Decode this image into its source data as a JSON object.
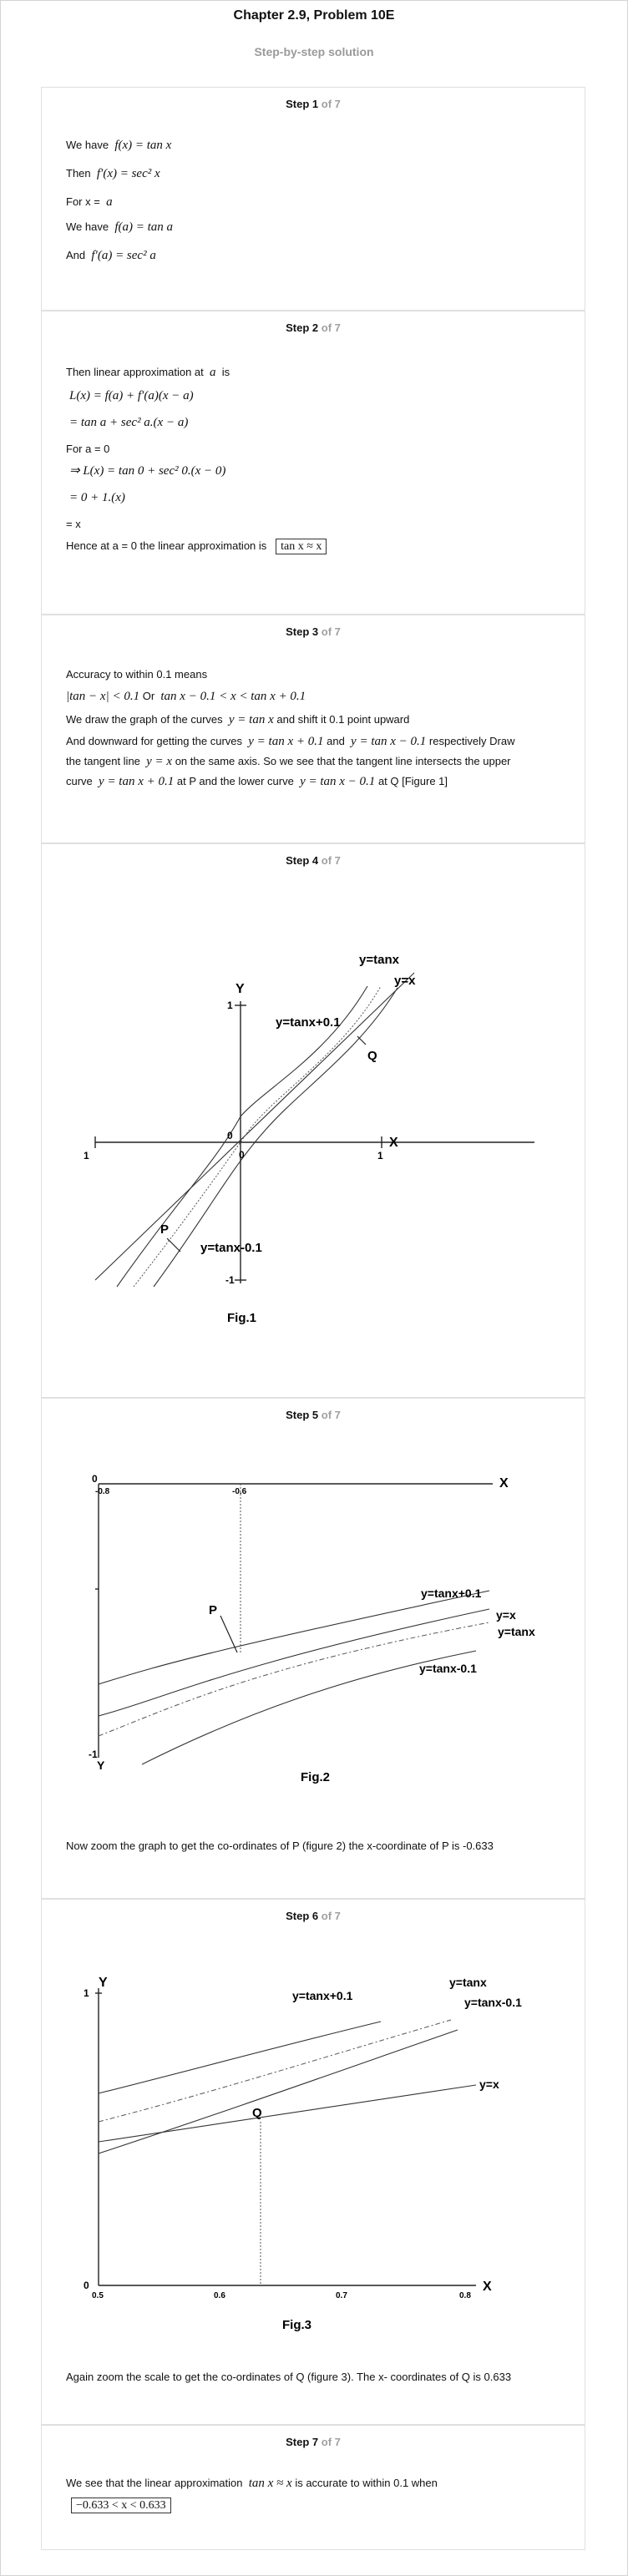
{
  "header": {
    "title": "Chapter 2.9, Problem 10E",
    "subtitle": "Step-by-step solution"
  },
  "steps": [
    {
      "num": "Step 1",
      "of": " of 7",
      "lines": {
        "l1_pre": "We have",
        "l1_math": "f(x) = tan x",
        "l2_pre": "Then",
        "l2_math": "f′(x) = sec² x",
        "l3_pre": "For x =",
        "l3_math": "a",
        "l4_pre": "We have",
        "l4_math": "f(a) = tan a",
        "l5_pre": "And",
        "l5_math": "f′(a) = sec² a"
      }
    },
    {
      "num": "Step 2",
      "of": " of 7",
      "lines": {
        "l1_pre": "Then linear approximation at",
        "l1_math": "a",
        "l1_post": "is",
        "l2_math": "L(x) = f(a) + f′(a)(x − a)",
        "l3_math": "= tan a + sec² a.(x − a)",
        "l4_pre": "For a = 0",
        "l5_math": "⇒ L(x) = tan 0 + sec² 0.(x − 0)",
        "l6_math": "= 0 + 1.(x)",
        "l7_pre": "= x",
        "l8_pre": "Hence at a = 0 the linear approximation is",
        "l8_box": "tan x ≈ x"
      }
    },
    {
      "num": "Step 3",
      "of": " of 7",
      "lines": {
        "l1_pre": "Accuracy to within 0.1 means",
        "l2_math": "|tan − x| < 0.1",
        "l2_mid": "Or",
        "l2_math2": "tan x − 0.1 < x < tan x + 0.1",
        "l3_pre": "We draw the graph of the curves",
        "l3_math": "y = tan x",
        "l3_post": "and shift it 0.1 point upward",
        "p_a": "And downward for getting the curves",
        "p_m1": "y = tan x + 0.1",
        "p_b": "and",
        "p_m2": "y = tan x − 0.1",
        "p_c": "respectively Draw",
        "p2_a": "the tangent line",
        "p2_m": "y = x",
        "p2_b": "on the same axis. So we see that the tangent line intersects the upper",
        "p3_a": "curve",
        "p3_m1": "y = tan x + 0.1",
        "p3_b": "at P and the lower curve",
        "p3_m2": "y = tan x − 0.1",
        "p3_c": "at Q [Figure 1]"
      }
    },
    {
      "num": "Step 4",
      "of": " of 7"
    },
    {
      "num": "Step 5",
      "of": " of 7",
      "text": "Now zoom the graph to get the co-ordinates of P (figure 2) the x-coordinate of P is -0.633"
    },
    {
      "num": "Step 6",
      "of": " of 7",
      "text": "Again zoom the scale to get the co-ordinates of Q (figure 3). The x- coordinates of Q is 0.633"
    },
    {
      "num": "Step 7",
      "of": " of 7",
      "l1_pre": "We see that the linear approximation",
      "l1_math": "tan x ≈ x",
      "l1_post": "is accurate to within 0.1 when",
      "l2_box": "−0.633 < x < 0.633"
    }
  ],
  "figures": {
    "fig1": {
      "caption": "Fig.1",
      "x_axis": "X",
      "y_axis": "Y",
      "tick_x_neg": "-1",
      "tick_x_pos": "1",
      "tick_y_pos": "1",
      "tick_y_neg": "-1",
      "origin_a": "0",
      "origin_b": "0",
      "lbl_tan": "y=tanx",
      "lbl_yx": "y=x",
      "lbl_up": "y=tanx+0.1",
      "lbl_down": "y=tanx-0.1",
      "lbl_p": "P",
      "lbl_q": "Q"
    },
    "fig2": {
      "caption": "Fig.2",
      "x_axis": "X",
      "y_axis": "Y",
      "tick_0": "0",
      "tick_08": "-0.8",
      "tick_06": "-0.6",
      "tick_m1": "-1",
      "lbl_up": "y=tanx+0.1",
      "lbl_yx": "y=x",
      "lbl_tan": "y=tanx",
      "lbl_down": "y=tanx-0.1",
      "lbl_p": "P"
    },
    "fig3": {
      "caption": "Fig.3",
      "x_axis": "X",
      "y_axis": "Y",
      "tick_1": "1",
      "tick_0": "0",
      "tick_05": "0.5",
      "tick_06": "0.6",
      "tick_07": "0.7",
      "tick_08": "0.8",
      "lbl_up": "y=tanx+0.1",
      "lbl_tan": "y=tanx",
      "lbl_down": "y=tanx-0.1",
      "lbl_yx": "y=x",
      "lbl_q": "Q"
    }
  }
}
